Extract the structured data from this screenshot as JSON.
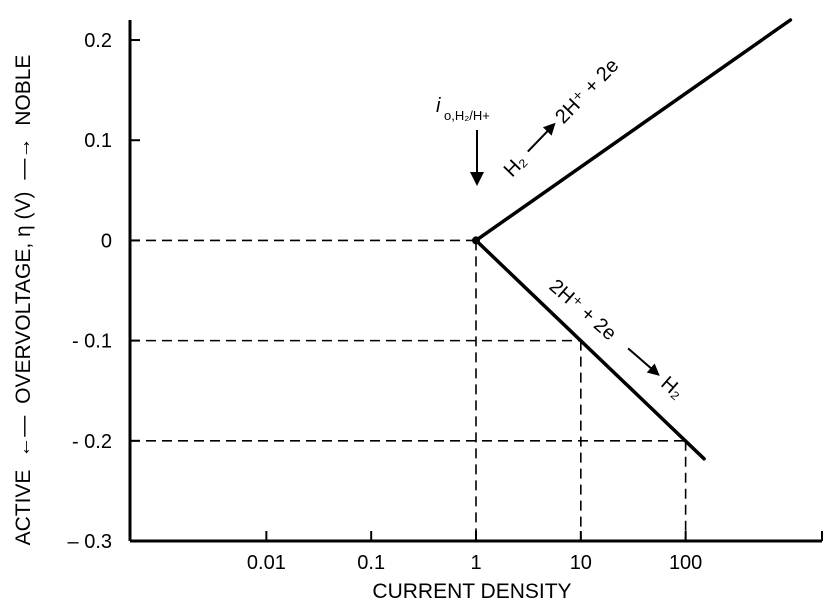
{
  "chart_data": {
    "type": "line",
    "title": "",
    "xlabel": "CURRENT DENSITY",
    "ylabel": "ACTIVE ← OVERVOLTAGE, η (V) → NOBLE",
    "ylabel_parts": {
      "left": "ACTIVE",
      "middle": "OVERVOLTAGE, η (V)",
      "right": "NOBLE"
    },
    "x_scale": "log",
    "xlim": [
      0.0005,
      2000
    ],
    "ylim": [
      -0.3,
      0.22
    ],
    "x_ticks": [
      0.01,
      0.1,
      1,
      10,
      100
    ],
    "x_tick_labels": [
      "0.01",
      "0.1",
      "1",
      "10",
      "100"
    ],
    "y_ticks": [
      -0.3,
      -0.2,
      -0.1,
      0,
      0.1,
      0.2
    ],
    "y_tick_labels": [
      "– 0.3",
      "- 0.2",
      "- 0.1",
      "0",
      "0.1",
      "0.2"
    ],
    "grid": false,
    "series": [
      {
        "name": "H2 → 2H+ + 2e",
        "x": [
          1,
          1000
        ],
        "y": [
          0,
          0.22
        ]
      },
      {
        "name": "2H+ + 2e → H2",
        "x": [
          1,
          150
        ],
        "y": [
          0,
          -0.218
        ]
      }
    ],
    "reference_lines": [
      {
        "type": "horizontal",
        "y": 0,
        "x_to": 1
      },
      {
        "type": "horizontal",
        "y": -0.1,
        "x_to": 10
      },
      {
        "type": "horizontal",
        "y": -0.2,
        "x_to": 100
      },
      {
        "type": "vertical",
        "x": 1,
        "y_from": 0
      },
      {
        "type": "vertical",
        "x": 10,
        "y_from": -0.1
      },
      {
        "type": "vertical",
        "x": 100,
        "y_from": -0.2
      }
    ],
    "annotations": {
      "exchange_current": {
        "main": "i",
        "sub": "o,H₂/H+",
        "x": 1
      },
      "anodic": {
        "from": "H₂",
        "to": "2H⁺ + 2e"
      },
      "cathodic": {
        "from": "2H⁺ + 2e",
        "to": "H₂"
      }
    }
  }
}
